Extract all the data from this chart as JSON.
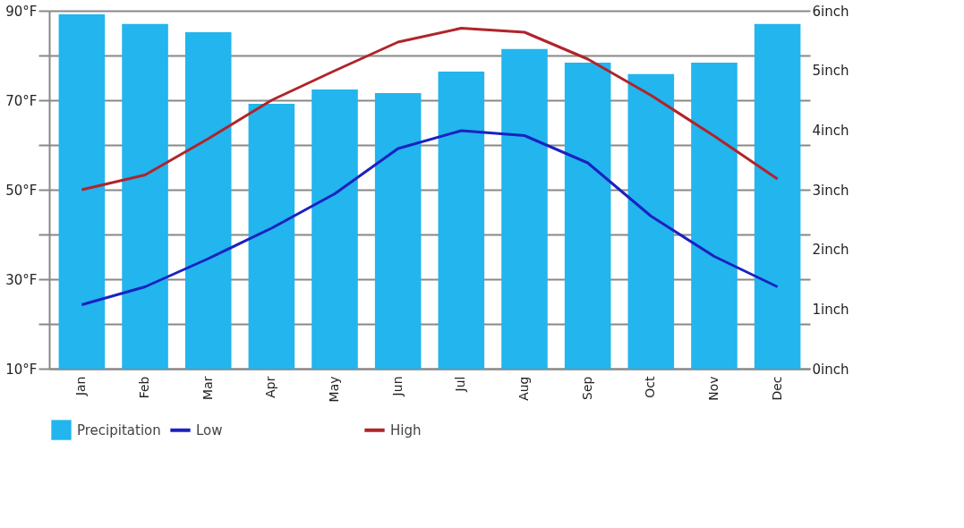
{
  "chart_data": {
    "type": "line",
    "categories": [
      "Jan",
      "Feb",
      "Mar",
      "Apr",
      "May",
      "Jun",
      "Jul",
      "Aug",
      "Sep",
      "Oct",
      "Nov",
      "Dec"
    ],
    "series": [
      {
        "name": "Low",
        "color": "#1a22c0",
        "values": [
          24.3,
          28.3,
          34.6,
          41.4,
          49.1,
          59.2,
          63.2,
          62.1,
          56.0,
          44.1,
          35.1,
          28.3
        ]
      },
      {
        "name": "High",
        "color": "#b0242a",
        "values": [
          50.0,
          53.3,
          61.4,
          70.0,
          76.6,
          83.0,
          86.1,
          85.2,
          79.2,
          71.1,
          62.0,
          52.4
        ]
      },
      {
        "name": "Precipitation",
        "type": "bar",
        "axis": "y2",
        "color": "#22b5ee",
        "values": [
          5.94,
          5.78,
          5.64,
          4.44,
          4.68,
          4.62,
          4.98,
          5.36,
          5.13,
          4.94,
          5.13,
          5.78
        ]
      }
    ],
    "ylim": [
      10,
      90
    ],
    "yticks": [
      {
        "value": 10,
        "label": "10°F"
      },
      {
        "value": 20,
        "label": null
      },
      {
        "value": 30,
        "label": "30°F"
      },
      {
        "value": 40,
        "label": null
      },
      {
        "value": 50,
        "label": "50°F"
      },
      {
        "value": 60,
        "label": null
      },
      {
        "value": 70,
        "label": "70°F"
      },
      {
        "value": 80,
        "label": null
      },
      {
        "value": 90,
        "label": "90°F"
      }
    ],
    "y2lim": [
      0,
      6
    ],
    "y2ticks": [
      {
        "value": 0,
        "label": "0inch"
      },
      {
        "value": 1,
        "label": "1inch"
      },
      {
        "value": 2,
        "label": "2inch"
      },
      {
        "value": 3,
        "label": "3inch"
      },
      {
        "value": 4,
        "label": "4inch"
      },
      {
        "value": 5,
        "label": "5inch"
      },
      {
        "value": 6,
        "label": "6inch"
      }
    ],
    "grid": "y",
    "legend": "bottom",
    "marker": "none",
    "line_style": "solid"
  }
}
